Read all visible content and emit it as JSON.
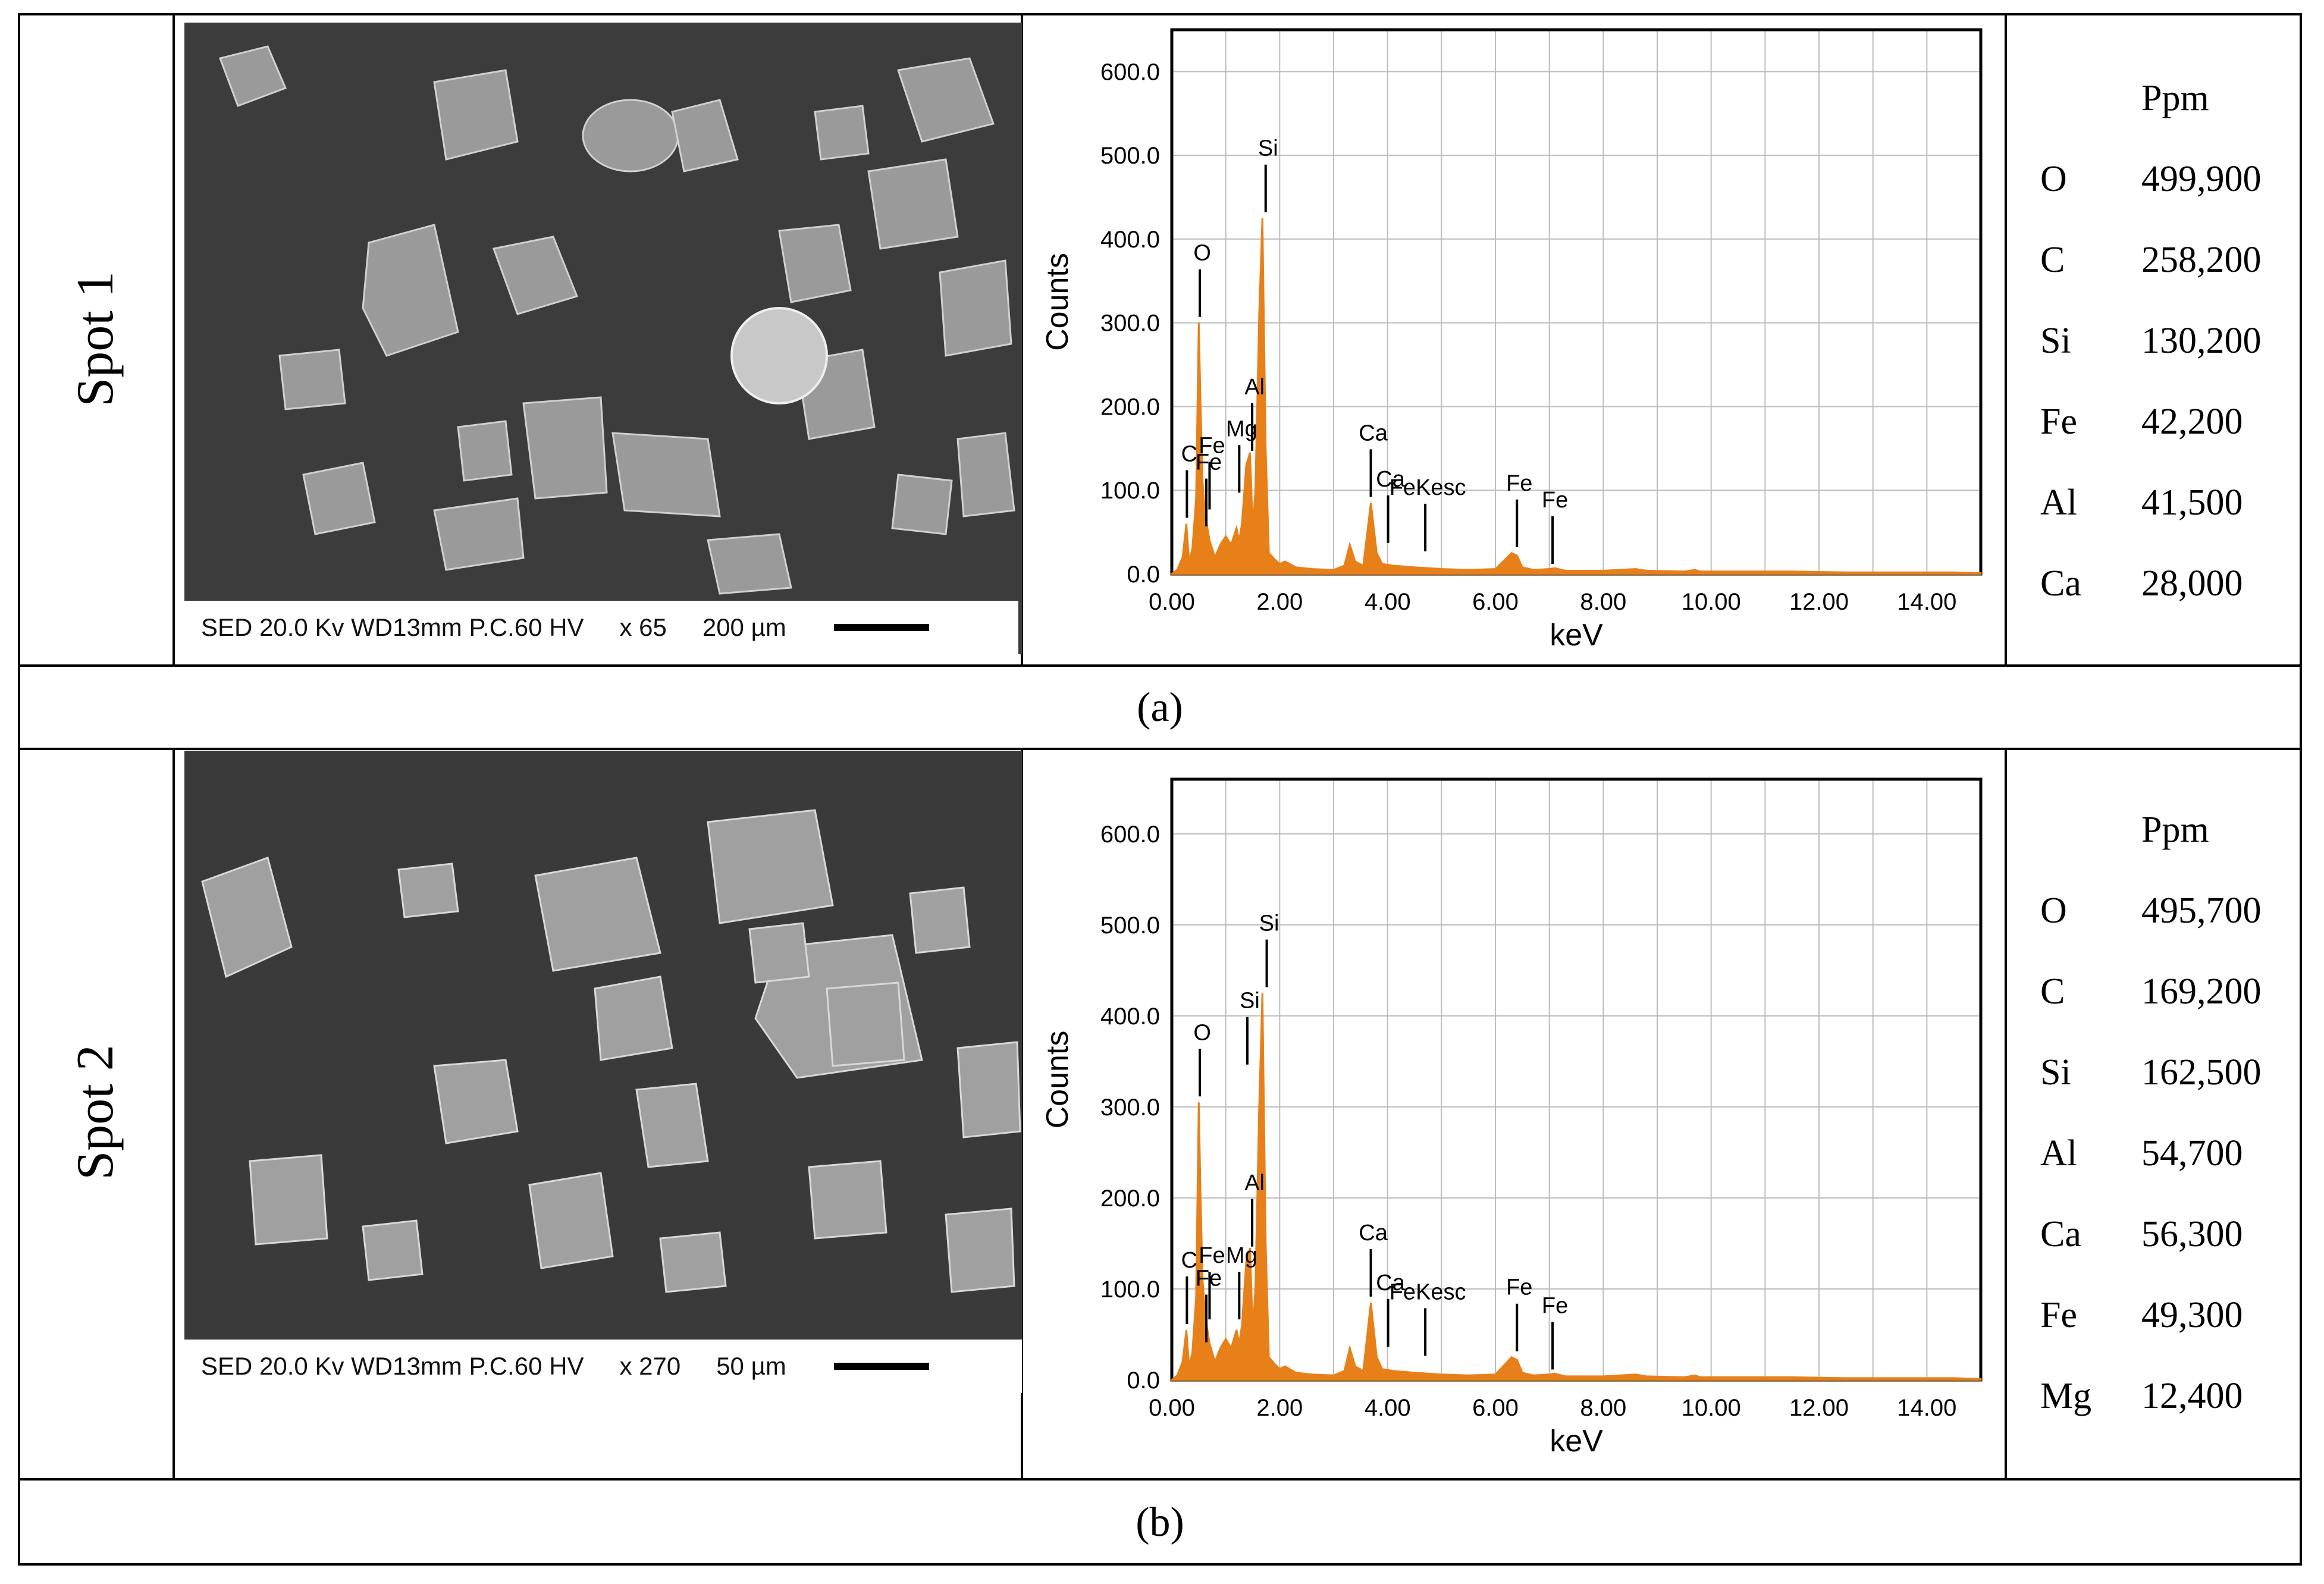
{
  "caption_a": "(a)",
  "caption_b": "(b)",
  "panels": [
    {
      "spot_label": "Spot 1",
      "sem_info": {
        "mode": "SED 20.0 Kv WD13mm P.C.60  HV",
        "mag": "x 65",
        "scale": "200 µm"
      },
      "ppm_header": "Ppm",
      "ppm": [
        {
          "el": "O",
          "val": "499,900"
        },
        {
          "el": "C",
          "val": "258,200"
        },
        {
          "el": "Si",
          "val": "130,200"
        },
        {
          "el": "Fe",
          "val": "42,200"
        },
        {
          "el": "Al",
          "val": "41,500"
        },
        {
          "el": "Ca",
          "val": "28,000"
        }
      ]
    },
    {
      "spot_label": "Spot 2",
      "sem_info": {
        "mode": "SED 20.0 Kv WD13mm P.C.60  HV",
        "mag": "x 270",
        "scale": "50 µm"
      },
      "ppm_header": "Ppm",
      "ppm": [
        {
          "el": "O",
          "val": "495,700"
        },
        {
          "el": "C",
          "val": "169,200"
        },
        {
          "el": "Si",
          "val": "162,500"
        },
        {
          "el": "Al",
          "val": "54,700"
        },
        {
          "el": "Ca",
          "val": "56,300"
        },
        {
          "el": "Fe",
          "val": "49,300"
        },
        {
          "el": "Mg",
          "val": "12,400"
        }
      ]
    }
  ],
  "chart_data": [
    {
      "type": "line",
      "xlabel": "keV",
      "ylabel": "Counts",
      "xlim": [
        0,
        15
      ],
      "ylim": [
        0,
        650
      ],
      "xticks": [
        "0.00",
        "2.00",
        "4.00",
        "6.00",
        "8.00",
        "10.00",
        "12.00",
        "14.00"
      ],
      "yticks": [
        "0.0",
        "100.0",
        "200.0",
        "300.0",
        "400.0",
        "500.0",
        "600.0"
      ],
      "grid": true,
      "color": "#e8801a",
      "series": [
        {
          "x": [
            0,
            0.1,
            0.2,
            0.27,
            0.32,
            0.38,
            0.45,
            0.5,
            0.53,
            0.57,
            0.62,
            0.7,
            0.8,
            0.9,
            1.0,
            1.1,
            1.2,
            1.25,
            1.3,
            1.38,
            1.45,
            1.5,
            1.55,
            1.62,
            1.68,
            1.74,
            1.8,
            1.9,
            2.0,
            2.1,
            2.3,
            2.6,
            3.0,
            3.2,
            3.3,
            3.4,
            3.55,
            3.69,
            3.8,
            3.9,
            4.1,
            4.5,
            5.0,
            5.5,
            6.0,
            6.3,
            6.4,
            6.5,
            6.7,
            7.0,
            7.1,
            7.3,
            8.0,
            8.6,
            8.8,
            9.5,
            9.7,
            9.8,
            10.5,
            11.5,
            12.5,
            13.5,
            14.5,
            15.0
          ],
          "y": [
            0,
            5,
            20,
            60,
            15,
            30,
            90,
            300,
            210,
            110,
            70,
            40,
            20,
            35,
            45,
            35,
            55,
            40,
            60,
            130,
            145,
            55,
            100,
            310,
            425,
            150,
            25,
            18,
            12,
            15,
            8,
            6,
            5,
            10,
            35,
            15,
            10,
            85,
            25,
            12,
            10,
            8,
            6,
            5,
            6,
            25,
            22,
            8,
            5,
            6,
            7,
            4,
            4,
            6,
            4,
            3,
            5,
            3,
            3,
            3,
            2,
            2,
            2,
            1
          ]
        }
      ],
      "annotations": [
        {
          "text": "O",
          "x": 0.52,
          "y": 300
        },
        {
          "text": "Si",
          "x": 1.74,
          "y": 425
        },
        {
          "text": "Al",
          "x": 1.49,
          "y": 140
        },
        {
          "text": "Mg",
          "x": 1.25,
          "y": 90
        },
        {
          "text": "C",
          "x": 0.28,
          "y": 60
        },
        {
          "text": "Fe",
          "x": 0.7,
          "y": 70
        },
        {
          "text": "Fe",
          "x": 0.64,
          "y": 50
        },
        {
          "text": "Ca",
          "x": 3.69,
          "y": 85
        },
        {
          "text": "Ca",
          "x": 4.01,
          "y": 30
        },
        {
          "text": "FeKesc",
          "x": 4.7,
          "y": 20
        },
        {
          "text": "Fe",
          "x": 6.4,
          "y": 25
        },
        {
          "text": "Fe",
          "x": 7.06,
          "y": 5
        }
      ]
    },
    {
      "type": "line",
      "xlabel": "keV",
      "ylabel": "Counts",
      "xlim": [
        0,
        15
      ],
      "ylim": [
        0,
        660
      ],
      "xticks": [
        "0.00",
        "2.00",
        "4.00",
        "6.00",
        "8.00",
        "10.00",
        "12.00",
        "14.00"
      ],
      "yticks": [
        "0.0",
        "100.0",
        "200.0",
        "300.0",
        "400.0",
        "500.0",
        "600.0"
      ],
      "grid": true,
      "color": "#e8801a",
      "series": [
        {
          "x": [
            0,
            0.1,
            0.2,
            0.27,
            0.32,
            0.38,
            0.45,
            0.5,
            0.53,
            0.57,
            0.62,
            0.7,
            0.8,
            0.9,
            1.0,
            1.1,
            1.2,
            1.25,
            1.3,
            1.38,
            1.45,
            1.5,
            1.55,
            1.62,
            1.68,
            1.74,
            1.8,
            1.9,
            2.0,
            2.1,
            2.3,
            2.6,
            3.0,
            3.2,
            3.3,
            3.4,
            3.55,
            3.69,
            3.8,
            3.9,
            4.1,
            4.5,
            5.0,
            5.5,
            6.0,
            6.3,
            6.4,
            6.5,
            6.7,
            7.0,
            7.1,
            7.3,
            8.0,
            8.6,
            8.8,
            9.5,
            9.7,
            9.8,
            10.5,
            11.5,
            12.5,
            13.5,
            14.5,
            15.0
          ],
          "y": [
            0,
            5,
            20,
            55,
            15,
            30,
            90,
            305,
            210,
            110,
            70,
            40,
            20,
            35,
            45,
            35,
            55,
            40,
            60,
            130,
            145,
            55,
            100,
            300,
            425,
            150,
            25,
            18,
            12,
            15,
            8,
            6,
            5,
            10,
            35,
            15,
            10,
            85,
            25,
            12,
            10,
            8,
            6,
            5,
            6,
            25,
            22,
            8,
            5,
            6,
            7,
            4,
            4,
            6,
            4,
            3,
            5,
            3,
            3,
            3,
            2,
            2,
            2,
            1
          ]
        }
      ],
      "annotations": [
        {
          "text": "O",
          "x": 0.52,
          "y": 305
        },
        {
          "text": "Si",
          "x": 1.76,
          "y": 425
        },
        {
          "text": "Si",
          "x": 1.4,
          "y": 340
        },
        {
          "text": "Al",
          "x": 1.49,
          "y": 140
        },
        {
          "text": "Mg",
          "x": 1.25,
          "y": 60
        },
        {
          "text": "C",
          "x": 0.28,
          "y": 55
        },
        {
          "text": "Fe",
          "x": 0.7,
          "y": 60
        },
        {
          "text": "Fe",
          "x": 0.64,
          "y": 35
        },
        {
          "text": "Ca",
          "x": 3.69,
          "y": 85
        },
        {
          "text": "Ca",
          "x": 4.01,
          "y": 30
        },
        {
          "text": "FeKesc",
          "x": 4.7,
          "y": 20
        },
        {
          "text": "Fe",
          "x": 6.4,
          "y": 25
        },
        {
          "text": "Fe",
          "x": 7.06,
          "y": 5
        }
      ]
    }
  ]
}
